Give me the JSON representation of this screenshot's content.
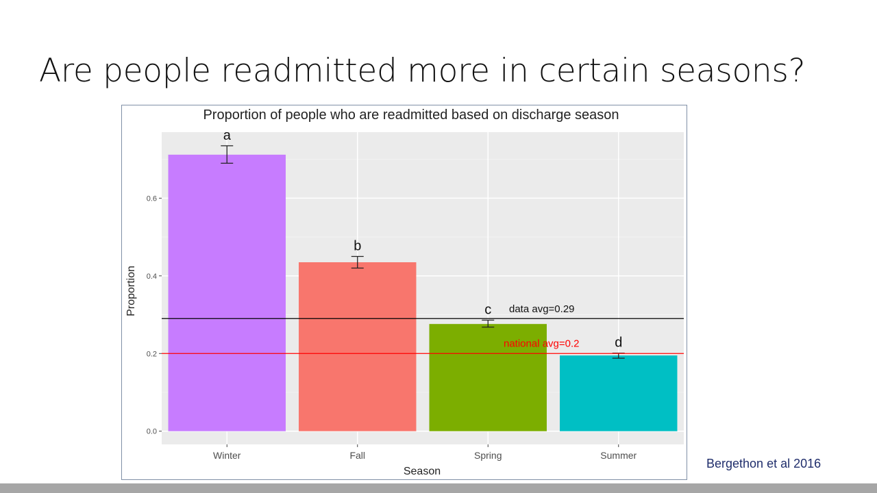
{
  "slide": {
    "title": "Are people readmitted more in certain seasons?",
    "citation": "Bergethon et al 2016"
  },
  "chart_data": {
    "type": "bar",
    "title": "Proportion of people who are readmitted based on discharge season",
    "xlabel": "Season",
    "ylabel": "Proportion",
    "categories": [
      "Winter",
      "Fall",
      "Spring",
      "Summer"
    ],
    "values": [
      0.712,
      0.435,
      0.276,
      0.195
    ],
    "error_low": [
      0.69,
      0.42,
      0.268,
      0.188
    ],
    "error_high": [
      0.735,
      0.45,
      0.286,
      0.201
    ],
    "group_labels": [
      "a",
      "b",
      "c",
      "d"
    ],
    "colors": [
      "#c77cff",
      "#f8766d",
      "#7cae00",
      "#00bfc4"
    ],
    "ylim": [
      -0.034,
      0.77
    ],
    "yticks": [
      0.0,
      0.2,
      0.4,
      0.6
    ],
    "ytick_labels": [
      "0.0",
      "0.2",
      "0.4",
      "0.6"
    ],
    "grid": true,
    "reference_lines": [
      {
        "value": 0.29,
        "label": "data avg=0.29",
        "color": "#000000"
      },
      {
        "value": 0.2,
        "label": "national avg=0.2",
        "color": "#ff0000"
      }
    ]
  }
}
